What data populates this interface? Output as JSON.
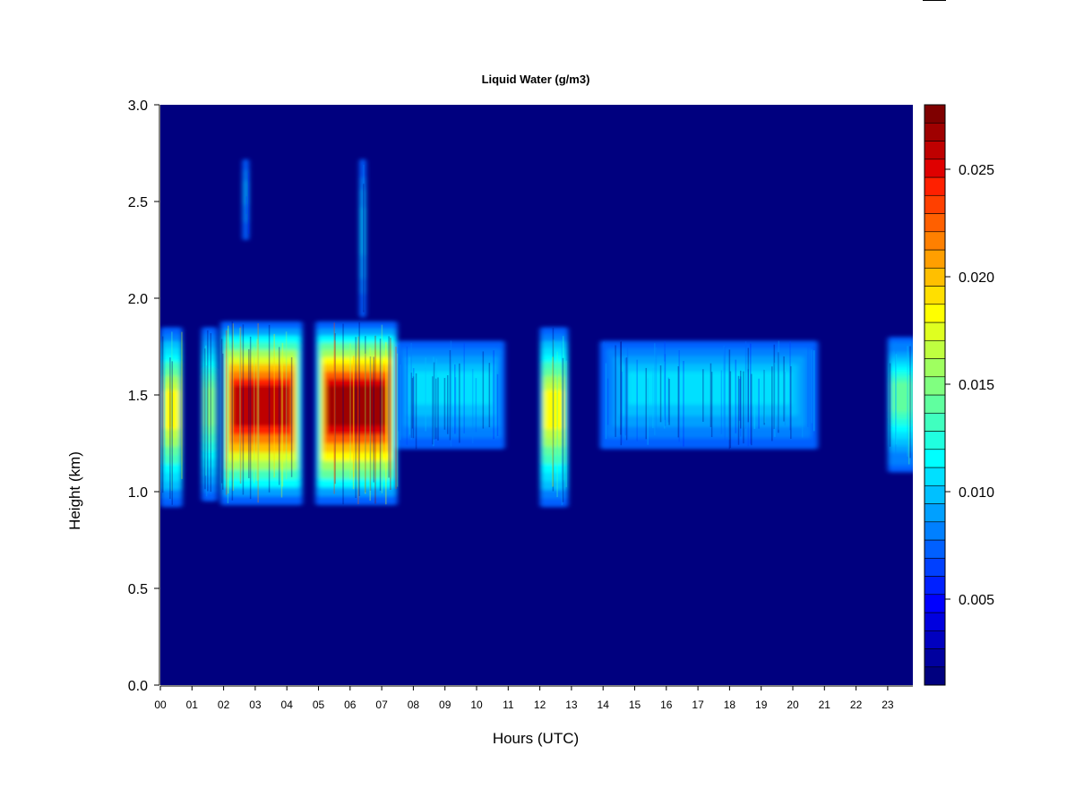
{
  "chart_data": {
    "type": "heatmap",
    "title": "Liquid Water (g/m3)",
    "xlabel": "Hours (UTC)",
    "ylabel": "Height (km)",
    "xlim": [
      0,
      23.9
    ],
    "ylim": [
      0.0,
      3.0
    ],
    "x_ticks": [
      "00",
      "01",
      "02",
      "03",
      "04",
      "05",
      "06",
      "07",
      "08",
      "09",
      "10",
      "11",
      "12",
      "13",
      "14",
      "15",
      "16",
      "17",
      "18",
      "19",
      "20",
      "21",
      "22",
      "23"
    ],
    "y_ticks": [
      "0.0",
      "0.5",
      "1.0",
      "1.5",
      "2.0",
      "2.5",
      "3.0"
    ],
    "colorbar": {
      "range": [
        0.001,
        0.028
      ],
      "ticks": [
        {
          "value": 0.005,
          "label": "0.005"
        },
        {
          "value": 0.01,
          "label": "0.010"
        },
        {
          "value": 0.015,
          "label": "0.015"
        },
        {
          "value": 0.02,
          "label": "0.020"
        },
        {
          "value": 0.025,
          "label": "0.025"
        }
      ],
      "colors": [
        "#00007f",
        "#00009f",
        "#0000bf",
        "#0000df",
        "#0000ff",
        "#0020ff",
        "#0040ff",
        "#0060ff",
        "#0080ff",
        "#00a0ff",
        "#00c0ff",
        "#00e0ff",
        "#00ffff",
        "#20ffdf",
        "#40ffbf",
        "#60ff9f",
        "#80ff80",
        "#9fff60",
        "#bfff40",
        "#dfff20",
        "#ffff00",
        "#ffdf00",
        "#ffbf00",
        "#ff9f00",
        "#ff8000",
        "#ff6000",
        "#ff4000",
        "#ff2000",
        "#df0000",
        "#bf0000",
        "#9f0000",
        "#7f0000"
      ]
    },
    "cloud_features": [
      {
        "x_start": 0.0,
        "x_end": 0.7,
        "y_bottom": 0.92,
        "y_top": 1.85,
        "peak": 0.018
      },
      {
        "x_start": 1.3,
        "x_end": 1.8,
        "y_bottom": 0.95,
        "y_top": 1.85,
        "peak": 0.015
      },
      {
        "x_start": 1.9,
        "x_end": 4.5,
        "y_bottom": 0.93,
        "y_top": 1.88,
        "peak": 0.026
      },
      {
        "x_start": 4.9,
        "x_end": 7.5,
        "y_bottom": 0.93,
        "y_top": 1.88,
        "peak": 0.027
      },
      {
        "x_start": 7.5,
        "x_end": 10.9,
        "y_bottom": 1.22,
        "y_top": 1.78,
        "peak": 0.011
      },
      {
        "x_start": 12.0,
        "x_end": 12.9,
        "y_bottom": 0.92,
        "y_top": 1.85,
        "peak": 0.018
      },
      {
        "x_start": 13.9,
        "x_end": 20.8,
        "y_bottom": 1.22,
        "y_top": 1.78,
        "peak": 0.011
      },
      {
        "x_start": 23.0,
        "x_end": 23.9,
        "y_bottom": 1.1,
        "y_top": 1.8,
        "peak": 0.014
      },
      {
        "x_start": 2.6,
        "x_end": 2.8,
        "y_bottom": 2.3,
        "y_top": 2.72,
        "peak": 0.009
      },
      {
        "x_start": 6.3,
        "x_end": 6.5,
        "y_bottom": 1.9,
        "y_top": 2.72,
        "peak": 0.01
      }
    ]
  }
}
